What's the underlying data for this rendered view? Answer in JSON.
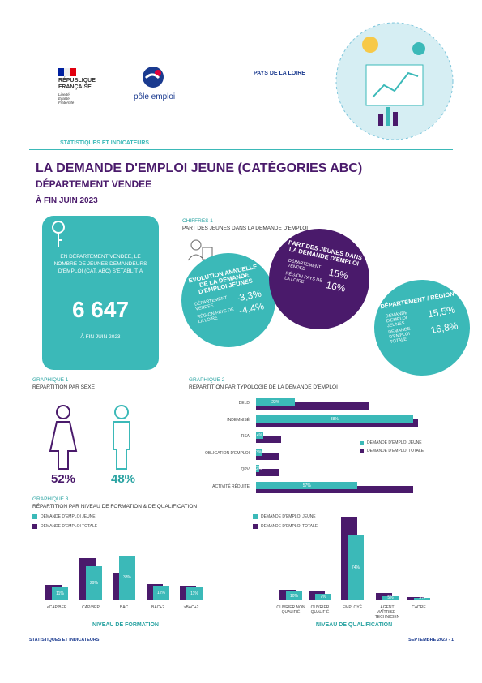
{
  "header": {
    "republic": "RÉPUBLIQUE FRANÇAISE",
    "motto": "Liberté Égalité Fraternité",
    "brand": "pôle emploi",
    "region": "PAYS DE LA LOIRE",
    "section": "STATISTIQUES ET INDICATEURS"
  },
  "title": {
    "main": "LA DEMANDE D'EMPLOI JEUNE (CATÉGORIES ABC)",
    "department": "DÉPARTEMENT VENDEE",
    "date": "À FIN JUIN 2023"
  },
  "key_figure": {
    "text": "EN DÉPARTEMENT VENDEE, LE NOMBRE DE JEUNES DEMANDEURS D'EMPLOI (CAT. ABC) S'ÉTABLIT À",
    "value": "6 647",
    "date": "À FIN JUIN 2023"
  },
  "chiffres_1": {
    "label": "CHIFFRES 1",
    "title": "PART DES JEUNES DANS LA DEMANDE D'EMPLOI",
    "bubbles": [
      {
        "title": "ÉVOLUTION ANNUELLE DE LA DEMANDE D'EMPLOI JEUNES",
        "rows": [
          {
            "label": "DÉPARTEMENT VENDEE",
            "value": "-3,3%"
          },
          {
            "label": "RÉGION PAYS DE LA LOIRE",
            "value": "-4,4%"
          }
        ]
      },
      {
        "title": "PART DES JEUNES DANS LA DEMANDE D'EMPLOI",
        "rows": [
          {
            "label": "DÉPARTEMENT VENDEE",
            "value": "15%"
          },
          {
            "label": "RÉGION PAYS DE LA LOIRE",
            "value": "16%"
          }
        ]
      },
      {
        "title": "DÉPARTEMENT / RÉGION",
        "rows": [
          {
            "label": "DEMANDE D'EMPLOI JEUNES",
            "value": "15,5%"
          },
          {
            "label": "DEMANDE D'EMPLOI TOTALE",
            "value": "16,8%"
          }
        ]
      }
    ]
  },
  "graphique_1": {
    "label": "GRAPHIQUE 1",
    "title": "RÉPARTITION PAR SEXE",
    "women": "52%",
    "men": "48%"
  },
  "graphique_2": {
    "label": "GRAPHIQUE 2",
    "title": "RÉPARTITION PAR TYPOLOGIE DE LA DEMANDE D'EMPLOI",
    "type": "hbar",
    "categories": [
      "DELD",
      "INDEMNISÉ",
      "RSA",
      "OBLIGATION D'EMPLOI",
      "QPV",
      "ACTIVITÉ RÉDUITE"
    ],
    "series": [
      {
        "name": "DEMANDE D'EMPLOI JEUNE",
        "color": "#3bb9b8",
        "values": [
          22,
          88,
          4,
          3,
          2,
          57
        ],
        "value_labels": [
          "22%",
          "88%",
          "4%",
          "3%",
          "2%",
          "57%"
        ]
      },
      {
        "name": "DEMANDE D'EMPLOI TOTALE",
        "color": "#4a1a6b",
        "values": [
          63,
          91,
          14,
          13,
          13,
          88
        ]
      }
    ]
  },
  "graphique_3": {
    "label": "GRAPHIQUE 3",
    "title": "RÉPARTITION PAR NIVEAU DE FORMATION & DE QUALIFICATION",
    "charts": [
      {
        "type": "bar",
        "xlabel": "NIVEAU DE FORMATION",
        "categories": [
          "<CAP/BEP",
          "CAP/BEP",
          "BAC",
          "BAC+2",
          ">BAC+2"
        ],
        "series": [
          {
            "name": "DEMANDE D'EMPLOI JEUNE",
            "color": "#3bb9b8",
            "values": [
              11,
              29,
              38,
              12,
              11
            ],
            "value_labels": [
              "11%",
              "29%",
              "38%",
              "12%",
              "11%"
            ]
          },
          {
            "name": "DEMANDE D'EMPLOI TOTALE",
            "color": "#4a1a6b",
            "values": [
              13,
              36,
              23,
              14,
              12
            ]
          }
        ]
      },
      {
        "type": "bar",
        "xlabel": "NIVEAU DE QUALIFICATION",
        "categories": [
          "OUVRIER NON QUALIFIÉ",
          "OUVRIER QUALIFIÉ",
          "EMPLOYÉ",
          "AGENT MAÎTRISE - TECHNICIEN",
          "CADRE"
        ],
        "series": [
          {
            "name": "DEMANDE D'EMPLOI JEUNE",
            "color": "#3bb9b8",
            "values": [
              10,
              7,
              74,
              5,
              3
            ],
            "value_labels": [
              "10%",
              "7%",
              "74%",
              "5%",
              "3%"
            ]
          },
          {
            "name": "DEMANDE D'EMPLOI TOTALE",
            "color": "#4a1a6b",
            "values": [
              12,
              11,
              95,
              8,
              4
            ]
          }
        ]
      }
    ]
  },
  "footer": {
    "left": "STATISTIQUES ET INDICATEURS",
    "right": "SEPTEMBRE 2023 - 1"
  }
}
